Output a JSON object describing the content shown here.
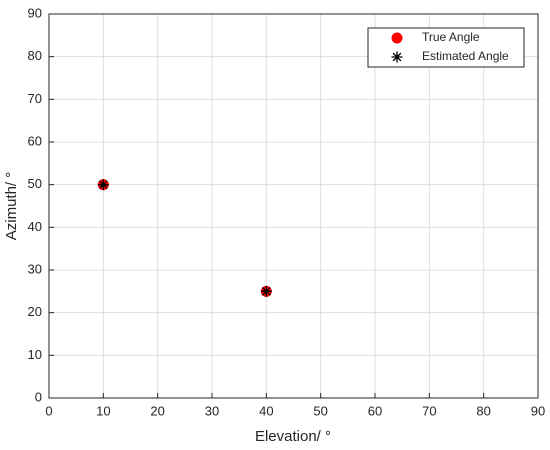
{
  "chart_data": {
    "type": "scatter",
    "x_label": "Elevation/ °",
    "y_label": "Azimuth/ °",
    "xlim": [
      0,
      90
    ],
    "ylim": [
      0,
      90
    ],
    "xticks": [
      0,
      10,
      20,
      30,
      40,
      50,
      60,
      70,
      80,
      90
    ],
    "yticks": [
      0,
      10,
      20,
      30,
      40,
      50,
      60,
      70,
      80,
      90
    ],
    "grid": true,
    "legend": "upper right",
    "series": [
      {
        "name": "True Angle",
        "color": "#ff0000",
        "marker": "o",
        "x": [
          10,
          40
        ],
        "values": [
          50,
          25
        ]
      },
      {
        "name": "Estimated Angle",
        "color": "#000000",
        "marker": "*",
        "x": [
          10,
          40
        ],
        "values": [
          50,
          25
        ]
      }
    ]
  }
}
